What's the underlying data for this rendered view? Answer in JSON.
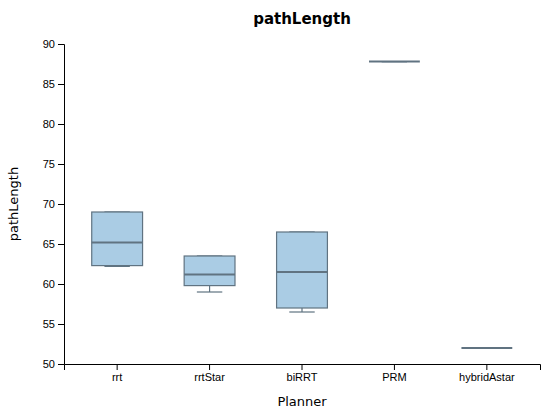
{
  "chart_data": {
    "type": "box",
    "title": "pathLength",
    "xlabel": "Planner",
    "ylabel": "pathLength",
    "categories": [
      "rrt",
      "rrtStar",
      "biRRT",
      "PRM",
      "hybridAstar"
    ],
    "median": [
      65.2,
      61.2,
      61.5,
      87.8,
      52.0
    ],
    "q1": [
      62.3,
      59.8,
      57.0,
      87.8,
      52.0
    ],
    "q3": [
      69.0,
      63.5,
      66.5,
      87.8,
      52.0
    ],
    "whislo": [
      62.2,
      59.0,
      56.5,
      87.8,
      52.0
    ],
    "whishi": [
      69.0,
      63.5,
      66.5,
      87.8,
      52.0
    ],
    "color": "#aacce4",
    "ylim": [
      50,
      90
    ],
    "yticks": [
      50,
      55,
      60,
      65,
      70,
      75,
      80,
      85,
      90
    ],
    "grid": false
  }
}
